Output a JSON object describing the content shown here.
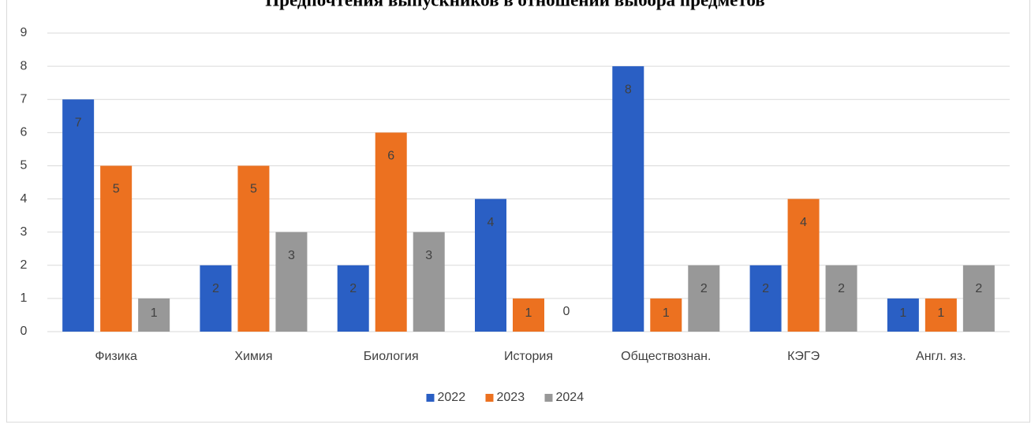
{
  "chart_data": {
    "type": "bar",
    "title": "Предпочтения выпускников в отношении выбора предметов",
    "categories": [
      "Физика",
      "Химия",
      "Биология",
      "История",
      "Обществознан.",
      "КЭГЭ",
      "Англ. яз."
    ],
    "series": [
      {
        "name": "2022",
        "color": "#2a5fc4",
        "values": [
          7,
          2,
          2,
          4,
          8,
          2,
          1
        ]
      },
      {
        "name": "2023",
        "color": "#ec7120",
        "values": [
          5,
          5,
          6,
          1,
          1,
          4,
          1
        ]
      },
      {
        "name": "2024",
        "color": "#989898",
        "values": [
          1,
          3,
          3,
          0,
          2,
          2,
          2
        ]
      }
    ],
    "ylim": [
      0,
      9
    ],
    "yticks": [
      0,
      1,
      2,
      3,
      4,
      5,
      6,
      7,
      8,
      9
    ],
    "grid": true,
    "legend": "bottom"
  }
}
